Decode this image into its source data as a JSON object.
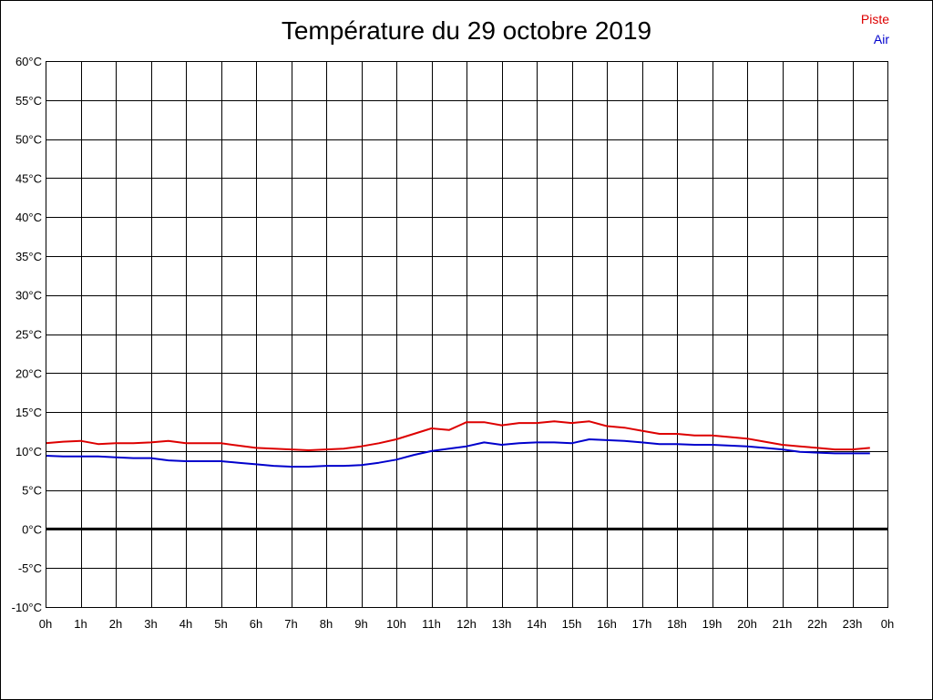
{
  "chart_data": {
    "type": "line",
    "title": "Température du 29 octobre 2019",
    "xlabel": "",
    "ylabel": "",
    "ylim": [
      -10,
      60
    ],
    "xlim": [
      0,
      24
    ],
    "grid": true,
    "legend_position": "top-right",
    "y_ticks": [
      "60°C",
      "55°C",
      "50°C",
      "45°C",
      "40°C",
      "35°C",
      "30°C",
      "25°C",
      "20°C",
      "15°C",
      "10°C",
      "5°C",
      "0°C",
      "-5°C",
      "-10°C"
    ],
    "y_tick_values": [
      60,
      55,
      50,
      45,
      40,
      35,
      30,
      25,
      20,
      15,
      10,
      5,
      0,
      -5,
      -10
    ],
    "x_ticks": [
      "0h",
      "1h",
      "2h",
      "3h",
      "4h",
      "5h",
      "6h",
      "7h",
      "8h",
      "9h",
      "10h",
      "11h",
      "12h",
      "13h",
      "14h",
      "15h",
      "16h",
      "17h",
      "18h",
      "19h",
      "20h",
      "21h",
      "22h",
      "23h",
      "0h"
    ],
    "x_tick_values": [
      0,
      1,
      2,
      3,
      4,
      5,
      6,
      7,
      8,
      9,
      10,
      11,
      12,
      13,
      14,
      15,
      16,
      17,
      18,
      19,
      20,
      21,
      22,
      23,
      24
    ],
    "series": [
      {
        "name": "Piste",
        "color": "#dd0000",
        "x": [
          0,
          0.5,
          1,
          1.5,
          2,
          2.5,
          3,
          3.5,
          4,
          4.5,
          5,
          5.5,
          6,
          6.5,
          7,
          7.5,
          8,
          8.5,
          9,
          9.5,
          10,
          10.5,
          11,
          11.5,
          12,
          12.5,
          13,
          13.5,
          14,
          14.5,
          15,
          15.5,
          16,
          16.5,
          17,
          17.5,
          18,
          18.5,
          19,
          19.5,
          20,
          20.5,
          21,
          21.5,
          22,
          22.5,
          23,
          23.5
        ],
        "values": [
          11.0,
          11.2,
          11.3,
          10.9,
          11.0,
          11.0,
          11.1,
          11.3,
          11.0,
          11.0,
          11.0,
          10.7,
          10.4,
          10.3,
          10.2,
          10.1,
          10.2,
          10.3,
          10.6,
          11.0,
          11.5,
          12.2,
          12.9,
          12.7,
          13.7,
          13.7,
          13.3,
          13.6,
          13.6,
          13.8,
          13.6,
          13.8,
          13.2,
          13.0,
          12.6,
          12.2,
          12.2,
          12.0,
          12.0,
          11.8,
          11.6,
          11.2,
          10.8,
          10.6,
          10.4,
          10.2,
          10.2,
          10.4
        ]
      },
      {
        "name": "Air",
        "color": "#0000cc",
        "x": [
          0,
          0.5,
          1,
          1.5,
          2,
          2.5,
          3,
          3.5,
          4,
          4.5,
          5,
          5.5,
          6,
          6.5,
          7,
          7.5,
          8,
          8.5,
          9,
          9.5,
          10,
          10.5,
          11,
          11.5,
          12,
          12.5,
          13,
          13.5,
          14,
          14.5,
          15,
          15.5,
          16,
          16.5,
          17,
          17.5,
          18,
          18.5,
          19,
          19.5,
          20,
          20.5,
          21,
          21.5,
          22,
          22.5,
          23,
          23.5
        ],
        "values": [
          9.4,
          9.3,
          9.3,
          9.3,
          9.2,
          9.1,
          9.1,
          8.8,
          8.7,
          8.7,
          8.7,
          8.5,
          8.3,
          8.1,
          8.0,
          8.0,
          8.1,
          8.1,
          8.2,
          8.5,
          8.9,
          9.5,
          10.0,
          10.3,
          10.6,
          11.1,
          10.8,
          11.0,
          11.1,
          11.1,
          11.0,
          11.5,
          11.4,
          11.3,
          11.1,
          10.9,
          10.9,
          10.8,
          10.8,
          10.7,
          10.6,
          10.4,
          10.2,
          9.9,
          9.8,
          9.7,
          9.7,
          9.7
        ]
      }
    ]
  }
}
